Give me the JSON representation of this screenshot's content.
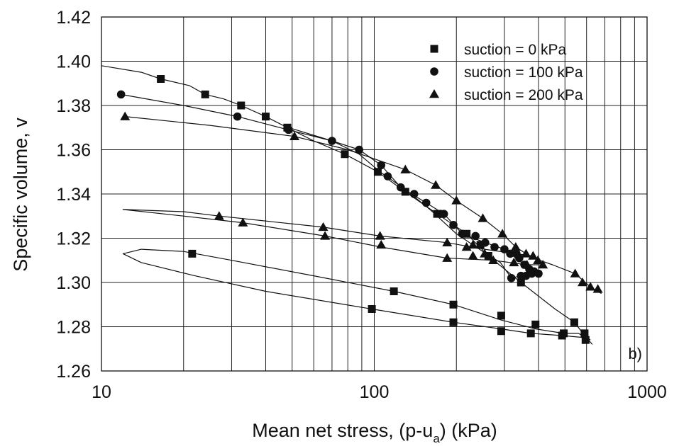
{
  "chart_data": {
    "type": "scatter",
    "xscale": "log",
    "xlim": [
      10,
      1000
    ],
    "ylim": [
      1.26,
      1.42
    ],
    "xticks": [
      "10",
      "100",
      "1000"
    ],
    "yticks": [
      "1.26",
      "1.28",
      "1.30",
      "1.32",
      "1.34",
      "1.36",
      "1.38",
      "1.40",
      "1.42"
    ],
    "xlabel_main": "Mean net stress, (p-u",
    "xlabel_sub": "a",
    "xlabel_end": ") (kPa)",
    "ylabel": "Specific volume, v",
    "grid": true,
    "legend_position": "top-right",
    "panel_label": "b)",
    "colors": {
      "ink": "#111111",
      "grid": "#222222"
    },
    "series": [
      {
        "name": "suction = 0 kPa",
        "marker": "square",
        "points": [
          [
            16.5,
            1.392
          ],
          [
            24,
            1.385
          ],
          [
            32.5,
            1.38
          ],
          [
            40,
            1.375
          ],
          [
            48,
            1.37
          ],
          [
            78,
            1.358
          ],
          [
            103,
            1.35
          ],
          [
            130,
            1.341
          ],
          [
            170,
            1.331
          ],
          [
            218,
            1.322
          ],
          [
            245,
            1.317
          ],
          [
            262,
            1.312
          ],
          [
            345,
            1.3
          ],
          [
            541,
            1.282
          ],
          [
            590,
            1.277
          ],
          [
            595,
            1.274
          ],
          [
            495,
            1.277
          ],
          [
            488,
            1.276
          ],
          [
            390,
            1.281
          ],
          [
            375,
            1.277
          ],
          [
            292,
            1.285
          ],
          [
            292,
            1.278
          ],
          [
            195,
            1.29
          ],
          [
            195,
            1.282
          ],
          [
            118,
            1.296
          ],
          [
            98,
            1.288
          ],
          [
            21.5,
            1.313
          ]
        ],
        "curves": [
          [
            [
              10,
              1.398
            ],
            [
              14,
              1.395
            ],
            [
              16.5,
              1.392
            ],
            [
              21,
              1.389
            ],
            [
              24,
              1.385
            ],
            [
              28,
              1.383
            ],
            [
              32.5,
              1.38
            ],
            [
              40,
              1.375
            ],
            [
              48,
              1.37
            ],
            [
              60,
              1.364
            ],
            [
              78,
              1.358
            ],
            [
              103,
              1.35
            ],
            [
              130,
              1.341
            ],
            [
              170,
              1.331
            ],
            [
              218,
              1.322
            ],
            [
              262,
              1.312
            ],
            [
              345,
              1.3
            ],
            [
              460,
              1.288
            ],
            [
              541,
              1.282
            ],
            [
              600,
              1.275
            ],
            [
              630,
              1.272
            ]
          ],
          [
            [
              620,
              1.274
            ],
            [
              560,
              1.277
            ],
            [
              495,
              1.277
            ],
            [
              390,
              1.279
            ],
            [
              292,
              1.283
            ],
            [
              195,
              1.29
            ],
            [
              118,
              1.296
            ],
            [
              60,
              1.303
            ],
            [
              30,
              1.31
            ],
            [
              20,
              1.314
            ],
            [
              14,
              1.315
            ],
            [
              12,
              1.313
            ],
            [
              14,
              1.309
            ],
            [
              22,
              1.303
            ],
            [
              40,
              1.296
            ],
            [
              98,
              1.288
            ],
            [
              195,
              1.282
            ],
            [
              292,
              1.279
            ],
            [
              375,
              1.277
            ],
            [
              488,
              1.276
            ],
            [
              600,
              1.275
            ]
          ]
        ]
      },
      {
        "name": "suction = 100 kPa",
        "marker": "circle",
        "points": [
          [
            11.8,
            1.385
          ],
          [
            31.5,
            1.375
          ],
          [
            48.5,
            1.369
          ],
          [
            70,
            1.364
          ],
          [
            88,
            1.36
          ],
          [
            106,
            1.353
          ],
          [
            112,
            1.348
          ],
          [
            125,
            1.343
          ],
          [
            140,
            1.34
          ],
          [
            155,
            1.336
          ],
          [
            175,
            1.331
          ],
          [
            180,
            1.331
          ],
          [
            195,
            1.326
          ],
          [
            210,
            1.322
          ],
          [
            235,
            1.321
          ],
          [
            255,
            1.318
          ],
          [
            276,
            1.316
          ],
          [
            300,
            1.315
          ],
          [
            315,
            1.313
          ],
          [
            332,
            1.313
          ],
          [
            340,
            1.311
          ],
          [
            355,
            1.308
          ],
          [
            370,
            1.306
          ],
          [
            385,
            1.305
          ],
          [
            400,
            1.304
          ],
          [
            318,
            1.302
          ],
          [
            345,
            1.303
          ],
          [
            360,
            1.303
          ],
          [
            378,
            1.304
          ]
        ],
        "curves": [
          [
            [
              11.8,
              1.385
            ],
            [
              20,
              1.38
            ],
            [
              31.5,
              1.375
            ],
            [
              48.5,
              1.369
            ],
            [
              70,
              1.364
            ],
            [
              88,
              1.36
            ],
            [
              106,
              1.353
            ],
            [
              125,
              1.343
            ],
            [
              155,
              1.336
            ],
            [
              180,
              1.331
            ],
            [
              210,
              1.322
            ],
            [
              255,
              1.318
            ],
            [
              300,
              1.315
            ],
            [
              355,
              1.308
            ],
            [
              400,
              1.304
            ],
            [
              385,
              1.303
            ],
            [
              345,
              1.303
            ],
            [
              318,
              1.302
            ],
            [
              290,
              1.309
            ],
            [
              250,
              1.314
            ],
            [
              200,
              1.322
            ],
            [
              160,
              1.333
            ],
            [
              130,
              1.342
            ],
            [
              105,
              1.35
            ],
            [
              88,
              1.358
            ],
            [
              70,
              1.364
            ],
            [
              48.5,
              1.37
            ]
          ]
        ]
      },
      {
        "name": "suction = 200 kPa",
        "marker": "triangle",
        "points": [
          [
            12.2,
            1.375
          ],
          [
            51,
            1.366
          ],
          [
            130,
            1.351
          ],
          [
            168,
            1.344
          ],
          [
            200,
            1.337
          ],
          [
            250,
            1.329
          ],
          [
            295,
            1.322
          ],
          [
            330,
            1.316
          ],
          [
            360,
            1.313
          ],
          [
            382,
            1.312
          ],
          [
            398,
            1.31
          ],
          [
            415,
            1.308
          ],
          [
            545,
            1.304
          ],
          [
            580,
            1.3
          ],
          [
            620,
            1.298
          ],
          [
            660,
            1.297
          ],
          [
            363,
            1.308
          ],
          [
            325,
            1.309
          ],
          [
            273,
            1.31
          ],
          [
            230,
            1.312
          ],
          [
            185,
            1.311
          ],
          [
            185,
            1.318
          ],
          [
            230,
            1.317
          ],
          [
            27,
            1.33
          ],
          [
            33,
            1.327
          ],
          [
            65,
            1.325
          ],
          [
            66,
            1.321
          ],
          [
            105,
            1.321
          ],
          [
            106,
            1.317
          ],
          [
            218,
            1.316
          ],
          [
            254,
            1.313
          ]
        ],
        "curves": [
          [
            [
              12.2,
              1.375
            ],
            [
              25,
              1.371
            ],
            [
              51,
              1.366
            ],
            [
              80,
              1.36
            ],
            [
              130,
              1.351
            ],
            [
              168,
              1.344
            ],
            [
              200,
              1.337
            ],
            [
              250,
              1.329
            ],
            [
              295,
              1.322
            ],
            [
              330,
              1.316
            ],
            [
              382,
              1.311
            ],
            [
              450,
              1.308
            ],
            [
              545,
              1.304
            ],
            [
              620,
              1.298
            ],
            [
              680,
              1.295
            ]
          ],
          [
            [
              415,
              1.308
            ],
            [
              363,
              1.308
            ],
            [
              273,
              1.31
            ],
            [
              185,
              1.311
            ],
            [
              106,
              1.316
            ],
            [
              66,
              1.321
            ],
            [
              33,
              1.327
            ],
            [
              20,
              1.33
            ],
            [
              12,
              1.333
            ],
            [
              20,
              1.332
            ],
            [
              27,
              1.33
            ],
            [
              65,
              1.325
            ],
            [
              105,
              1.321
            ],
            [
              185,
              1.318
            ],
            [
              254,
              1.315
            ],
            [
              330,
              1.313
            ],
            [
              380,
              1.312
            ]
          ]
        ]
      }
    ]
  }
}
